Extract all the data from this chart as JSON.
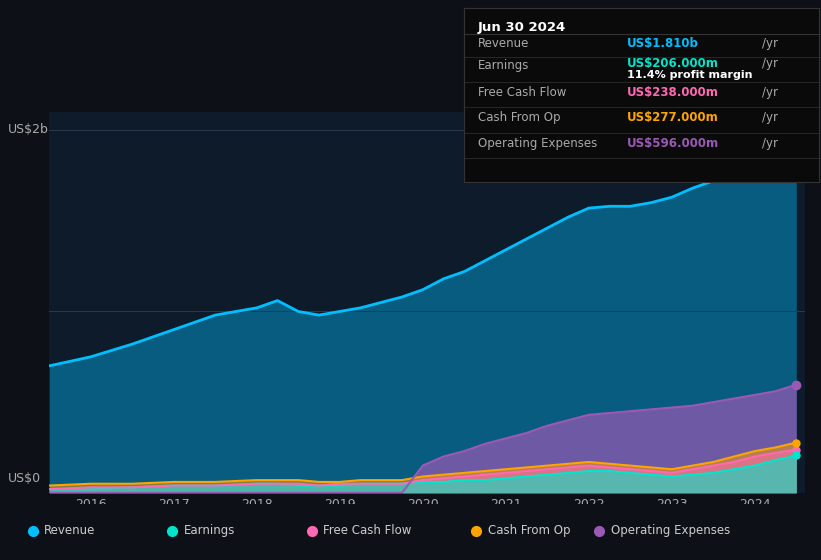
{
  "background_color": "#0d1117",
  "plot_bg_color": "#0d1b2a",
  "ylabel_top": "US$2b",
  "ylabel_bottom": "US$0",
  "years": [
    2015.5,
    2016,
    2016.5,
    2017,
    2017.5,
    2018,
    2018.25,
    2018.5,
    2018.75,
    2019,
    2019.25,
    2019.5,
    2019.75,
    2020,
    2020.25,
    2020.5,
    2020.75,
    2021,
    2021.25,
    2021.5,
    2021.75,
    2022,
    2022.25,
    2022.5,
    2022.75,
    2023,
    2023.25,
    2023.5,
    2023.75,
    2024,
    2024.25,
    2024.5
  ],
  "revenue": [
    0.7,
    0.75,
    0.82,
    0.9,
    0.98,
    1.02,
    1.06,
    1.0,
    0.98,
    1.0,
    1.02,
    1.05,
    1.08,
    1.12,
    1.18,
    1.22,
    1.28,
    1.34,
    1.4,
    1.46,
    1.52,
    1.57,
    1.58,
    1.58,
    1.6,
    1.63,
    1.68,
    1.72,
    1.76,
    1.8,
    1.83,
    1.81
  ],
  "earnings": [
    0.02,
    0.02,
    0.03,
    0.04,
    0.04,
    0.05,
    0.05,
    0.04,
    0.04,
    0.04,
    0.05,
    0.05,
    0.05,
    0.06,
    0.06,
    0.07,
    0.07,
    0.08,
    0.09,
    0.1,
    0.11,
    0.12,
    0.12,
    0.11,
    0.1,
    0.09,
    0.1,
    0.11,
    0.13,
    0.15,
    0.18,
    0.206
  ],
  "free_cash_flow": [
    0.02,
    0.03,
    0.03,
    0.04,
    0.04,
    0.05,
    0.05,
    0.05,
    0.04,
    0.05,
    0.05,
    0.05,
    0.05,
    0.07,
    0.08,
    0.09,
    0.1,
    0.11,
    0.12,
    0.13,
    0.14,
    0.15,
    0.14,
    0.13,
    0.12,
    0.11,
    0.13,
    0.15,
    0.17,
    0.2,
    0.22,
    0.238
  ],
  "cash_from_op": [
    0.04,
    0.05,
    0.05,
    0.06,
    0.06,
    0.07,
    0.07,
    0.07,
    0.06,
    0.06,
    0.07,
    0.07,
    0.07,
    0.09,
    0.1,
    0.11,
    0.12,
    0.13,
    0.14,
    0.15,
    0.16,
    0.17,
    0.16,
    0.15,
    0.14,
    0.13,
    0.15,
    0.17,
    0.2,
    0.23,
    0.25,
    0.277
  ],
  "operating_expenses": [
    0.0,
    0.0,
    0.0,
    0.0,
    0.0,
    0.0,
    0.0,
    0.0,
    0.0,
    0.0,
    0.0,
    0.0,
    0.0,
    0.15,
    0.2,
    0.23,
    0.27,
    0.3,
    0.33,
    0.37,
    0.4,
    0.43,
    0.44,
    0.45,
    0.46,
    0.47,
    0.48,
    0.5,
    0.52,
    0.54,
    0.56,
    0.596
  ],
  "revenue_color": "#00bfff",
  "earnings_color": "#00e5cc",
  "free_cash_flow_color": "#ff69b4",
  "cash_from_op_color": "#ffa500",
  "operating_expenses_color": "#9b59b6",
  "info_box": {
    "date": "Jun 30 2024",
    "revenue_label": "Revenue",
    "revenue_value": "US$1.810b",
    "revenue_color": "#00bfff",
    "earnings_label": "Earnings",
    "earnings_value": "US$206.000m",
    "earnings_color": "#00e5cc",
    "margin_text": "11.4% profit margin",
    "fcf_label": "Free Cash Flow",
    "fcf_value": "US$238.000m",
    "fcf_color": "#ff69b4",
    "cashop_label": "Cash From Op",
    "cashop_value": "US$277.000m",
    "cashop_color": "#ffa500",
    "opex_label": "Operating Expenses",
    "opex_value": "US$596.000m",
    "opex_color": "#9b59b6"
  },
  "legend": [
    {
      "label": "Revenue",
      "color": "#00bfff"
    },
    {
      "label": "Earnings",
      "color": "#00e5cc"
    },
    {
      "label": "Free Cash Flow",
      "color": "#ff69b4"
    },
    {
      "label": "Cash From Op",
      "color": "#ffa500"
    },
    {
      "label": "Operating Expenses",
      "color": "#9b59b6"
    }
  ],
  "xlim": [
    2015.5,
    2024.6
  ],
  "ylim": [
    0,
    2.1
  ],
  "xticks": [
    2016,
    2017,
    2018,
    2019,
    2020,
    2021,
    2022,
    2023,
    2024
  ],
  "grid_color": "#2a3a4a",
  "text_color": "#aaaaaa",
  "text_color_light": "#cccccc",
  "box_sep_color": "#333333"
}
